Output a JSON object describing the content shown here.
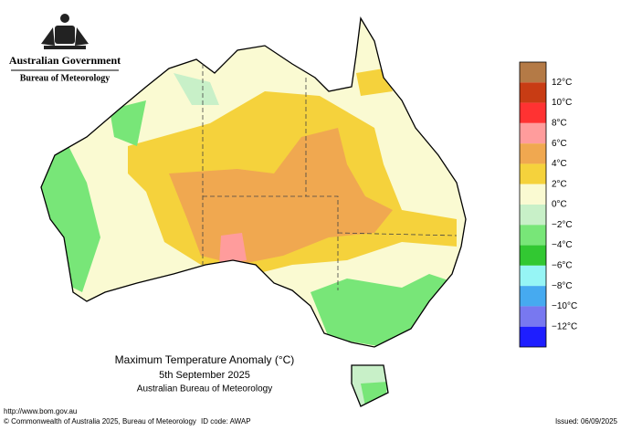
{
  "header": {
    "government": "Australian Government",
    "bureau": "Bureau of Meteorology"
  },
  "title": {
    "line1": "Maximum Temperature Anomaly (°C)",
    "line2": "5th September 2025",
    "line3": "Australian Bureau of Meteorology"
  },
  "legend": {
    "colors": [
      "#b47a46",
      "#c83c14",
      "#ff3232",
      "#ff9c9c",
      "#f0a850",
      "#f5d23c",
      "#fafad2",
      "#c8f0c8",
      "#78e678",
      "#32c832",
      "#96f5f5",
      "#46aaf0",
      "#7878f0",
      "#1e1eff"
    ],
    "labels": [
      "12°C",
      "10°C",
      "8°C",
      "6°C",
      "4°C",
      "2°C",
      "0°C",
      "−2°C",
      "−4°C",
      "−6°C",
      "−8°C",
      "−10°C",
      "−12°C"
    ]
  },
  "footer": {
    "url": "http://www.bom.gov.au",
    "copyright": "© Commonwealth of Australia 2025, Bureau of Meteorology",
    "id_code": "ID code: AWAP",
    "issued": "Issued: 06/09/2025"
  }
}
